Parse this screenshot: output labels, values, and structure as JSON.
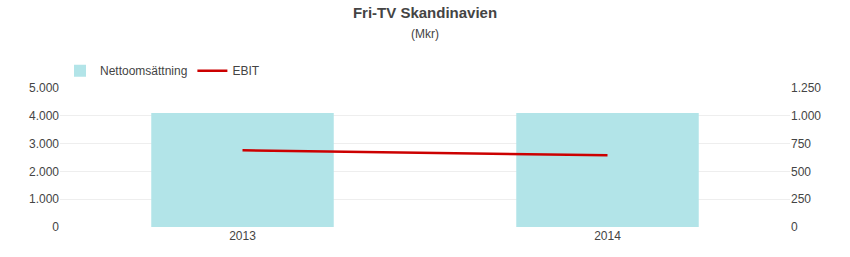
{
  "chart_data": {
    "type": "bar",
    "title": "Fri-TV Skandinavien",
    "subtitle": "(Mkr)",
    "categories": [
      "2013",
      "2014"
    ],
    "series": [
      {
        "name": "Nettoomsättning",
        "type": "bar",
        "color": "#b2e4e8",
        "values": [
          4100,
          4100
        ]
      },
      {
        "name": "EBIT",
        "type": "line",
        "color": "#cc0000",
        "axis": "y2",
        "values": [
          690,
          645
        ]
      }
    ],
    "ylim": [
      0,
      5000
    ],
    "yticks": [
      0,
      {
        "value": 1000,
        "label": "1.000"
      },
      {
        "value": 2000,
        "label": "2.000"
      },
      {
        "value": 3000,
        "label": "3.000"
      },
      {
        "value": 4000,
        "label": "4.000"
      },
      {
        "value": 5000,
        "label": "5.000"
      }
    ],
    "y2lim": [
      0,
      1250
    ],
    "y2ticks": [
      0,
      250,
      500,
      750,
      {
        "value": 1000,
        "label": "1.000"
      },
      {
        "value": 1250,
        "label": "1.250"
      }
    ],
    "grid": true,
    "legend": "top"
  }
}
